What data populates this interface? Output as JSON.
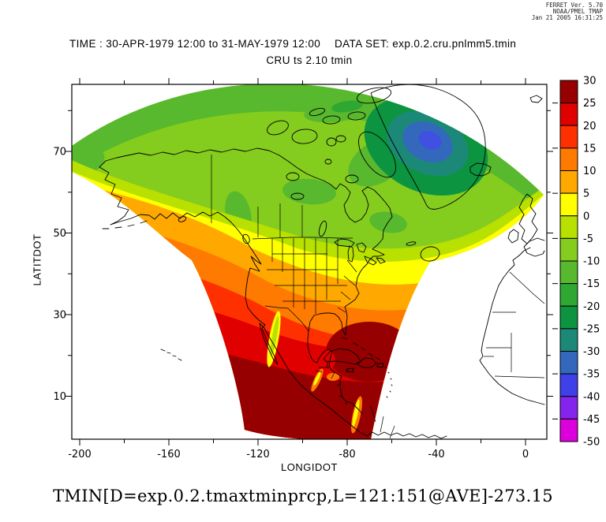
{
  "provenance": {
    "line1": "FERRET Ver. 5.70",
    "line2": "NOAA/PMEL TMAP",
    "line3": "Jan 21 2005 16:31:25"
  },
  "titles": {
    "time_range": "TIME : 30-APR-1979 12:00 to 31-MAY-1979 12:00",
    "dataset": "DATA SET: exp.0.2.cru.pnlmm5.tmin",
    "subtitle": "CRU ts 2.10 tmin",
    "formula": "TMIN[D=exp.0.2.tmaxtminprcp,L=121:151@AVE]-273.15"
  },
  "axes": {
    "x": {
      "label": "LONGIDOT",
      "major_ticks": [
        -200,
        -160,
        -120,
        -80,
        -40,
        0
      ],
      "minor_ticks": [
        -180,
        -140,
        -100,
        -60,
        -20
      ]
    },
    "y": {
      "label": "LATITDOT",
      "major_ticks": [
        70,
        50,
        30,
        10
      ],
      "minor_ticks": [
        80,
        60,
        40,
        20
      ]
    }
  },
  "colorbar": {
    "levels": [
      30,
      25,
      20,
      15,
      10,
      5,
      0,
      -5,
      -10,
      -15,
      -20,
      -25,
      -30,
      -35,
      -40,
      -45,
      -50
    ],
    "colors": [
      "#960000",
      "#e00000",
      "#ff3000",
      "#ff7a00",
      "#ffa800",
      "#ffff00",
      "#b8e000",
      "#84cc1e",
      "#58b82e",
      "#2ea832",
      "#0c9440",
      "#1c8878",
      "#3468bc",
      "#4040e8",
      "#8424ec",
      "#dc00dc"
    ]
  },
  "chart_data": {
    "type": "filled_contour_map",
    "title": "CRU ts 2.10 tmin",
    "time_label": "TIME : 30-APR-1979 12:00 to 31-MAY-1979 12:00",
    "dataset_label": "DATA SET: exp.0.2.cru.pnlmm5.tmin",
    "expression": "TMIN[D=exp.0.2.tmaxtminprcp,L=121:151@AVE]-273.15",
    "xlabel": "LONGIDOT",
    "ylabel": "LATITDOT",
    "xlim": [
      -203.5,
      9.5
    ],
    "ylim": [
      -0.5,
      86.5
    ],
    "x_ticks": [
      -200,
      -160,
      -120,
      -80,
      -40,
      0
    ],
    "y_ticks": [
      70,
      50,
      30,
      10
    ],
    "legend_position": "right-colorbar",
    "contour_levels": [
      30,
      25,
      20,
      15,
      10,
      5,
      0,
      -5,
      -10,
      -15,
      -20,
      -25,
      -30,
      -35,
      -40,
      -45,
      -50
    ],
    "palette": [
      "#960000",
      "#e00000",
      "#ff3000",
      "#ff7a00",
      "#ffa800",
      "#ffff00",
      "#b8e000",
      "#84cc1e",
      "#58b82e",
      "#2ea832",
      "#0c9440",
      "#1c8878",
      "#3468bc",
      "#4040e8",
      "#8424ec",
      "#dc00dc"
    ],
    "region": "North America, Greenland and adjacent oceans shown in a curved (fan-shaped) projection",
    "visible_pattern": [
      "25 to 30 over southern Mexico, the Gulf of Mexico and the Caribbean",
      "20 to 25 across the subtropical Atlantic and Gulf coast waters",
      "5 to 15 across the central and southern United States",
      "0 to 5 yellow band along southern Canada, coastal Alaska and the mid-latitude Atlantic",
      "-5 to -10 over most of Canada and interior Alaska",
      "-25 to -35 cold core over the central Greenland ice sheet"
    ]
  }
}
